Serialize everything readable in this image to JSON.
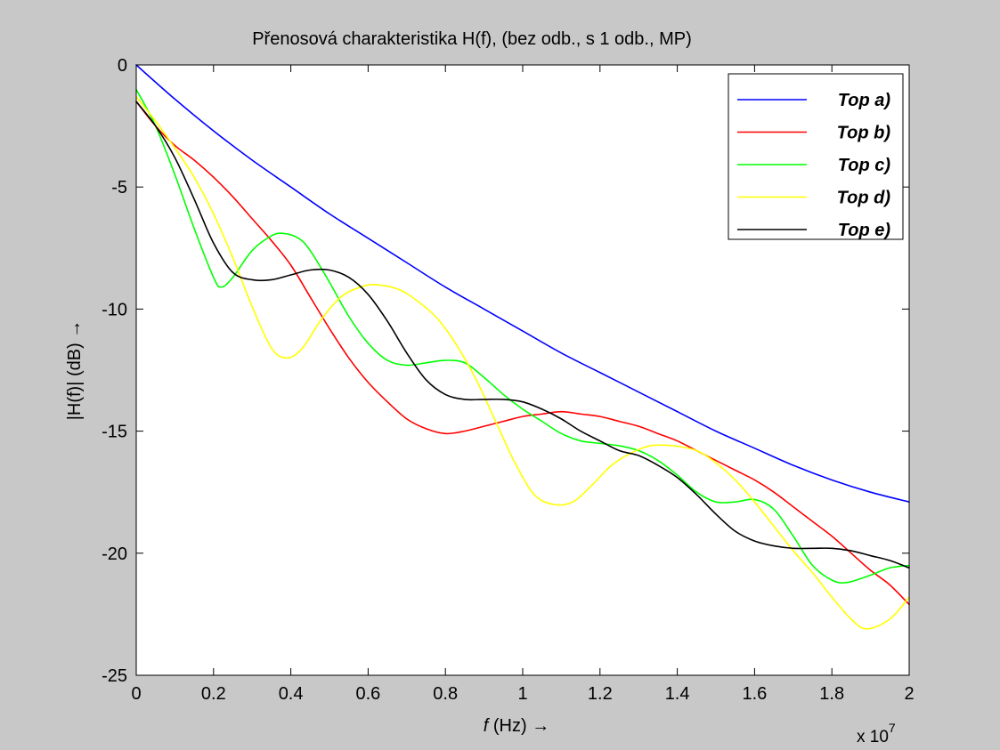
{
  "figure": {
    "background": "#c8c8c8"
  },
  "chart_data": {
    "type": "line",
    "title": "Přenosová charakteristika H(f), (bez odb., s 1 odb., MP)",
    "xlabel_italic": "f",
    "xlabel_rest": " (Hz) →",
    "ylabel": "|H(f)| (dB) →",
    "x_multiplier_base": "x 10",
    "x_multiplier_exp": "7",
    "xlim": [
      0,
      2
    ],
    "ylim": [
      -25,
      0
    ],
    "x_ticks": [
      0,
      0.2,
      0.4,
      0.6,
      0.8,
      1,
      1.2,
      1.4,
      1.6,
      1.8,
      2
    ],
    "x_tick_labels": [
      "0",
      "0.2",
      "0.4",
      "0.6",
      "0.8",
      "1",
      "1.2",
      "1.4",
      "1.6",
      "1.8",
      "2"
    ],
    "y_ticks": [
      0,
      -5,
      -10,
      -15,
      -20,
      -25
    ],
    "y_tick_labels": [
      "0",
      "-5",
      "-10",
      "-15",
      "-20",
      "-25"
    ],
    "grid": false,
    "legend_position": "top-right",
    "series": [
      {
        "name": "Top a)",
        "color": "#0000ff",
        "x": [
          0,
          0.1,
          0.2,
          0.3,
          0.4,
          0.5,
          0.6,
          0.7,
          0.8,
          0.9,
          1.0,
          1.1,
          1.2,
          1.3,
          1.4,
          1.5,
          1.6,
          1.7,
          1.8,
          1.9,
          2.0
        ],
        "y": [
          0,
          -1.4,
          -2.7,
          -3.9,
          -5.0,
          -6.1,
          -7.1,
          -8.1,
          -9.1,
          -10.0,
          -10.9,
          -11.8,
          -12.6,
          -13.4,
          -14.2,
          -15.0,
          -15.7,
          -16.4,
          -17.0,
          -17.5,
          -17.9
        ]
      },
      {
        "name": "Top b)",
        "color": "#ff0000",
        "x": [
          0,
          0.05,
          0.1,
          0.15,
          0.2,
          0.25,
          0.3,
          0.35,
          0.4,
          0.45,
          0.5,
          0.55,
          0.6,
          0.65,
          0.7,
          0.75,
          0.8,
          0.85,
          0.9,
          0.95,
          1.0,
          1.05,
          1.1,
          1.15,
          1.2,
          1.25,
          1.3,
          1.35,
          1.4,
          1.45,
          1.5,
          1.55,
          1.6,
          1.65,
          1.7,
          1.75,
          1.8,
          1.85,
          1.9,
          1.95,
          2.0
        ],
        "y": [
          -1.5,
          -2.5,
          -3.3,
          -3.9,
          -4.6,
          -5.4,
          -6.3,
          -7.2,
          -8.2,
          -9.5,
          -10.8,
          -12.0,
          -13.0,
          -13.8,
          -14.5,
          -14.9,
          -15.1,
          -15.0,
          -14.8,
          -14.6,
          -14.4,
          -14.3,
          -14.2,
          -14.3,
          -14.4,
          -14.6,
          -14.8,
          -15.1,
          -15.4,
          -15.8,
          -16.2,
          -16.6,
          -17.0,
          -17.5,
          -18.1,
          -18.7,
          -19.3,
          -20.0,
          -20.7,
          -21.3,
          -22.1
        ]
      },
      {
        "name": "Top c)",
        "color": "#00ff00",
        "x": [
          0,
          0.05,
          0.1,
          0.15,
          0.2,
          0.22,
          0.25,
          0.3,
          0.35,
          0.38,
          0.42,
          0.45,
          0.5,
          0.55,
          0.6,
          0.65,
          0.7,
          0.75,
          0.8,
          0.85,
          0.9,
          0.95,
          1.0,
          1.05,
          1.1,
          1.15,
          1.2,
          1.25,
          1.3,
          1.35,
          1.4,
          1.45,
          1.5,
          1.55,
          1.6,
          1.65,
          1.7,
          1.75,
          1.8,
          1.84,
          1.9,
          1.95,
          2.0
        ],
        "y": [
          -1.0,
          -2.5,
          -4.5,
          -6.7,
          -8.7,
          -9.1,
          -8.7,
          -7.6,
          -7.0,
          -6.9,
          -7.1,
          -7.6,
          -8.9,
          -10.3,
          -11.4,
          -12.1,
          -12.3,
          -12.2,
          -12.1,
          -12.2,
          -12.8,
          -13.5,
          -14.1,
          -14.6,
          -15.1,
          -15.4,
          -15.5,
          -15.6,
          -15.8,
          -16.2,
          -16.8,
          -17.5,
          -17.9,
          -17.9,
          -17.8,
          -18.2,
          -19.3,
          -20.5,
          -21.1,
          -21.2,
          -20.9,
          -20.6,
          -20.5
        ]
      },
      {
        "name": "Top d)",
        "color": "#ffff00",
        "x": [
          0,
          0.05,
          0.1,
          0.15,
          0.2,
          0.25,
          0.3,
          0.35,
          0.39,
          0.43,
          0.48,
          0.53,
          0.58,
          0.62,
          0.68,
          0.73,
          0.78,
          0.83,
          0.88,
          0.93,
          0.98,
          1.03,
          1.08,
          1.13,
          1.18,
          1.23,
          1.28,
          1.33,
          1.39,
          1.45,
          1.5,
          1.55,
          1.6,
          1.65,
          1.7,
          1.75,
          1.8,
          1.85,
          1.89,
          1.95,
          2.0
        ],
        "y": [
          -1.3,
          -2.3,
          -3.4,
          -4.6,
          -6.1,
          -7.9,
          -9.9,
          -11.6,
          -12.0,
          -11.6,
          -10.4,
          -9.5,
          -9.1,
          -9.0,
          -9.2,
          -9.7,
          -10.4,
          -11.5,
          -12.9,
          -14.6,
          -16.3,
          -17.6,
          -18.0,
          -17.9,
          -17.2,
          -16.4,
          -15.9,
          -15.6,
          -15.6,
          -15.8,
          -16.3,
          -17.0,
          -17.9,
          -18.9,
          -19.9,
          -20.8,
          -21.8,
          -22.7,
          -23.1,
          -22.7,
          -21.8
        ]
      },
      {
        "name": "Top e)",
        "color": "#000000",
        "x": [
          0,
          0.05,
          0.1,
          0.15,
          0.2,
          0.25,
          0.3,
          0.35,
          0.4,
          0.45,
          0.5,
          0.55,
          0.6,
          0.65,
          0.7,
          0.75,
          0.8,
          0.85,
          0.9,
          0.95,
          1.0,
          1.05,
          1.1,
          1.15,
          1.2,
          1.25,
          1.3,
          1.35,
          1.4,
          1.45,
          1.5,
          1.55,
          1.6,
          1.65,
          1.7,
          1.75,
          1.8,
          1.85,
          1.9,
          1.95,
          2.0
        ],
        "y": [
          -1.5,
          -2.5,
          -3.8,
          -5.5,
          -7.3,
          -8.5,
          -8.8,
          -8.8,
          -8.6,
          -8.4,
          -8.4,
          -8.7,
          -9.4,
          -10.5,
          -11.8,
          -12.9,
          -13.5,
          -13.7,
          -13.7,
          -13.7,
          -13.8,
          -14.1,
          -14.5,
          -15.0,
          -15.4,
          -15.8,
          -16.0,
          -16.4,
          -16.9,
          -17.6,
          -18.4,
          -19.1,
          -19.5,
          -19.7,
          -19.8,
          -19.8,
          -19.8,
          -19.9,
          -20.1,
          -20.3,
          -20.6
        ]
      }
    ]
  }
}
